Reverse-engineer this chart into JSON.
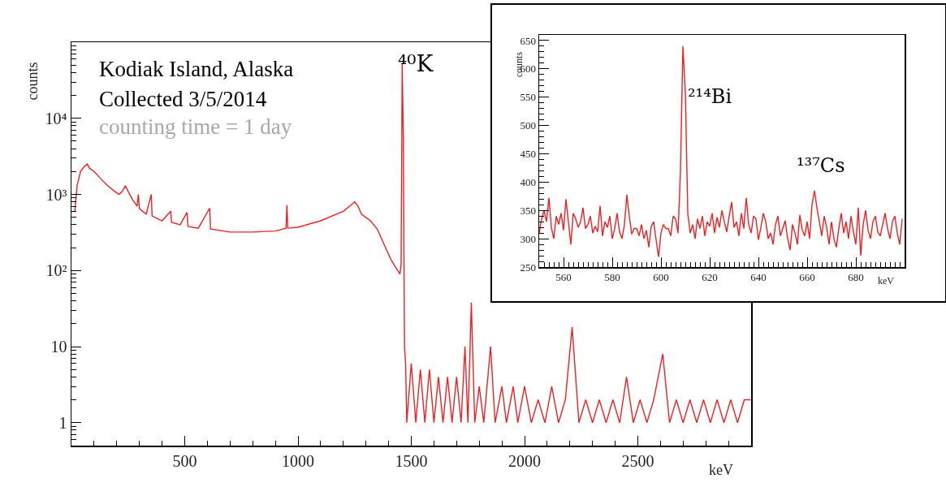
{
  "chart_data": [
    {
      "type": "line",
      "xlabel": "keV",
      "ylabel": "counts",
      "color": "#ee2024",
      "log": "y",
      "xlim": [
        0,
        3000
      ],
      "ylim": [
        0.5,
        100000
      ],
      "xticks": [
        500,
        1000,
        1500,
        2000,
        2500
      ],
      "yticks": [
        1,
        10,
        {
          "value": 100,
          "label": "10²"
        },
        {
          "value": 1000,
          "label": "10³"
        },
        {
          "value": 10000,
          "label": "10⁴"
        }
      ],
      "annotations": [
        "Kodiak Island, Alaska",
        "Collected 3/5/2014",
        "counting time = 1 day",
        {
          "text": "⁴⁰K",
          "x": 1460,
          "y": 52000
        }
      ],
      "x": [
        15,
        25,
        40,
        55,
        70,
        80,
        100,
        130,
        160,
        190,
        210,
        225,
        238,
        250,
        270,
        290,
        295,
        300,
        330,
        352,
        356,
        400,
        438,
        442,
        480,
        510,
        514,
        560,
        610,
        614,
        700,
        800,
        900,
        947,
        951,
        955,
        1000,
        1100,
        1200,
        1240,
        1250,
        1265,
        1280,
        1320,
        1350,
        1380,
        1410,
        1440,
        1450,
        1455,
        1460,
        1465,
        1470,
        1475,
        1480,
        1500,
        1520,
        1540,
        1560,
        1580,
        1600,
        1620,
        1640,
        1660,
        1680,
        1700,
        1720,
        1737,
        1750,
        1765,
        1780,
        1800,
        1820,
        1850,
        1870,
        1900,
        1920,
        1950,
        1970,
        2000,
        2030,
        2060,
        2090,
        2120,
        2150,
        2180,
        2210,
        2240,
        2270,
        2300,
        2330,
        2360,
        2390,
        2420,
        2450,
        2480,
        2510,
        2540,
        2570,
        2610,
        2640,
        2670,
        2700,
        2730,
        2760,
        2790,
        2820,
        2850,
        2880,
        2910,
        2940,
        2970,
        2998
      ],
      "values": [
        600,
        1300,
        2000,
        2300,
        2500,
        2200,
        2000,
        1600,
        1300,
        1100,
        1000,
        1100,
        1300,
        1100,
        850,
        700,
        1000,
        650,
        550,
        1000,
        520,
        450,
        600,
        430,
        400,
        580,
        380,
        360,
        660,
        350,
        320,
        320,
        330,
        360,
        720,
        360,
        370,
        450,
        600,
        750,
        800,
        700,
        550,
        450,
        350,
        220,
        140,
        100,
        90,
        120,
        52000,
        5000,
        10,
        6,
        1,
        6,
        1,
        5,
        1,
        5,
        1,
        4,
        1,
        4,
        1,
        4,
        1,
        10,
        1,
        38,
        1,
        3,
        1,
        10,
        1,
        3,
        1,
        3,
        1,
        3,
        1,
        2,
        1,
        3,
        1,
        2,
        18,
        1,
        2,
        1,
        2,
        1,
        2,
        1,
        4,
        1,
        2,
        1,
        2,
        8,
        1,
        2,
        1,
        2,
        1,
        2,
        1,
        2,
        1,
        2,
        1,
        2,
        2
      ]
    },
    {
      "type": "line",
      "xlabel": "keV",
      "ylabel": "counts",
      "color": "#ee2024",
      "xlim": [
        550,
        700
      ],
      "ylim": [
        250,
        660
      ],
      "xticks": [
        560,
        580,
        600,
        620,
        640,
        660,
        680
      ],
      "yticks": [
        250,
        300,
        350,
        400,
        450,
        500,
        550,
        600,
        650
      ],
      "annotations": [
        {
          "text": "²¹⁴Bi",
          "x": 609,
          "y": 640
        },
        {
          "text": "¹³⁷Cs",
          "x": 663,
          "y": 385
        }
      ],
      "x": [
        550,
        551,
        552,
        553,
        554,
        555,
        556,
        557,
        558,
        559,
        560,
        561,
        562,
        563,
        564,
        565,
        566,
        567,
        568,
        569,
        570,
        571,
        572,
        573,
        574,
        575,
        576,
        577,
        578,
        579,
        580,
        581,
        582,
        583,
        584,
        585,
        586,
        587,
        588,
        589,
        590,
        591,
        592,
        593,
        594,
        595,
        596,
        597,
        598,
        599,
        600,
        601,
        602,
        603,
        604,
        605,
        606,
        607,
        608,
        609,
        610,
        611,
        612,
        613,
        614,
        615,
        616,
        617,
        618,
        619,
        620,
        621,
        622,
        623,
        624,
        625,
        626,
        627,
        628,
        629,
        630,
        631,
        632,
        633,
        634,
        635,
        636,
        637,
        638,
        639,
        640,
        641,
        642,
        643,
        644,
        645,
        646,
        647,
        648,
        649,
        650,
        651,
        652,
        653,
        654,
        655,
        656,
        657,
        658,
        659,
        660,
        661,
        662,
        663,
        664,
        665,
        666,
        667,
        668,
        669,
        670,
        671,
        672,
        673,
        674,
        675,
        676,
        677,
        678,
        679,
        680,
        681,
        682,
        683,
        684,
        685,
        686,
        687,
        688,
        689,
        690,
        691,
        692,
        693,
        694,
        695,
        696,
        697,
        698,
        699
      ],
      "values": [
        310,
        335,
        350,
        330,
        372,
        320,
        300,
        340,
        325,
        345,
        315,
        370,
        330,
        290,
        345,
        335,
        320,
        330,
        355,
        318,
        325,
        340,
        310,
        322,
        312,
        358,
        305,
        330,
        320,
        340,
        300,
        318,
        345,
        312,
        300,
        325,
        378,
        340,
        308,
        318,
        318,
        305,
        325,
        300,
        315,
        285,
        322,
        330,
        298,
        268,
        310,
        325,
        318,
        318,
        305,
        340,
        335,
        310,
        420,
        640,
        560,
        345,
        310,
        325,
        300,
        335,
        318,
        340,
        305,
        330,
        322,
        345,
        310,
        338,
        320,
        350,
        330,
        312,
        340,
        365,
        320,
        330,
        305,
        345,
        318,
        372,
        325,
        310,
        340,
        335,
        298,
        320,
        345,
        330,
        300,
        310,
        290,
        325,
        340,
        305,
        318,
        332,
        300,
        280,
        325,
        310,
        290,
        342,
        315,
        305,
        330,
        300,
        360,
        385,
        355,
        330,
        305,
        340,
        320,
        290,
        330,
        300,
        285,
        318,
        345,
        310,
        330,
        300,
        340,
        312,
        290,
        355,
        270,
        325,
        350,
        315,
        300,
        330,
        340,
        312,
        305,
        325,
        345,
        318,
        300,
        330,
        340,
        310,
        290,
        335
      ]
    }
  ]
}
